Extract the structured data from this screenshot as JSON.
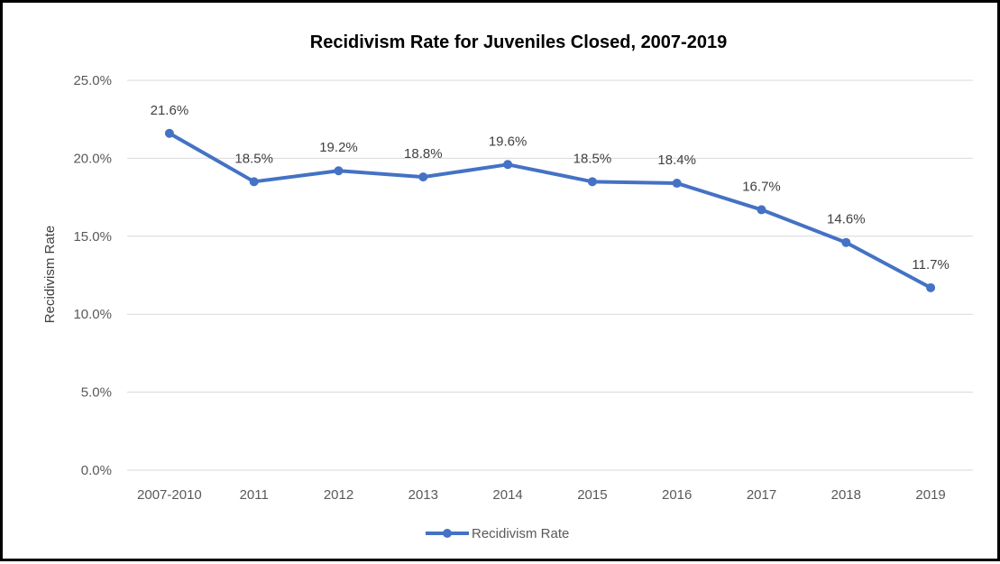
{
  "chart_data": {
    "type": "line",
    "title": "Recidivism Rate for Juveniles Closed, 2007-2019",
    "xlabel": "",
    "ylabel": "Recidivism Rate",
    "categories": [
      "2007-2010",
      "2011",
      "2012",
      "2013",
      "2014",
      "2015",
      "2016",
      "2017",
      "2018",
      "2019"
    ],
    "series": [
      {
        "name": "Recidivism Rate",
        "values": [
          21.6,
          18.5,
          19.2,
          18.8,
          19.6,
          18.5,
          18.4,
          16.7,
          14.6,
          11.7
        ],
        "data_labels": [
          "21.6%",
          "18.5%",
          "19.2%",
          "18.8%",
          "19.6%",
          "18.5%",
          "18.4%",
          "16.7%",
          "14.6%",
          "11.7%"
        ],
        "color": "#4472C4"
      }
    ],
    "ylim": [
      0,
      25
    ],
    "y_ticks": [
      0,
      5,
      10,
      15,
      20,
      25
    ],
    "y_tick_labels": [
      "0.0%",
      "5.0%",
      "10.0%",
      "15.0%",
      "20.0%",
      "25.0%"
    ],
    "grid": true,
    "legend_position": "bottom",
    "colors": {
      "line": "#4472C4",
      "grid": "#D9D9D9",
      "border": "#000000"
    }
  }
}
